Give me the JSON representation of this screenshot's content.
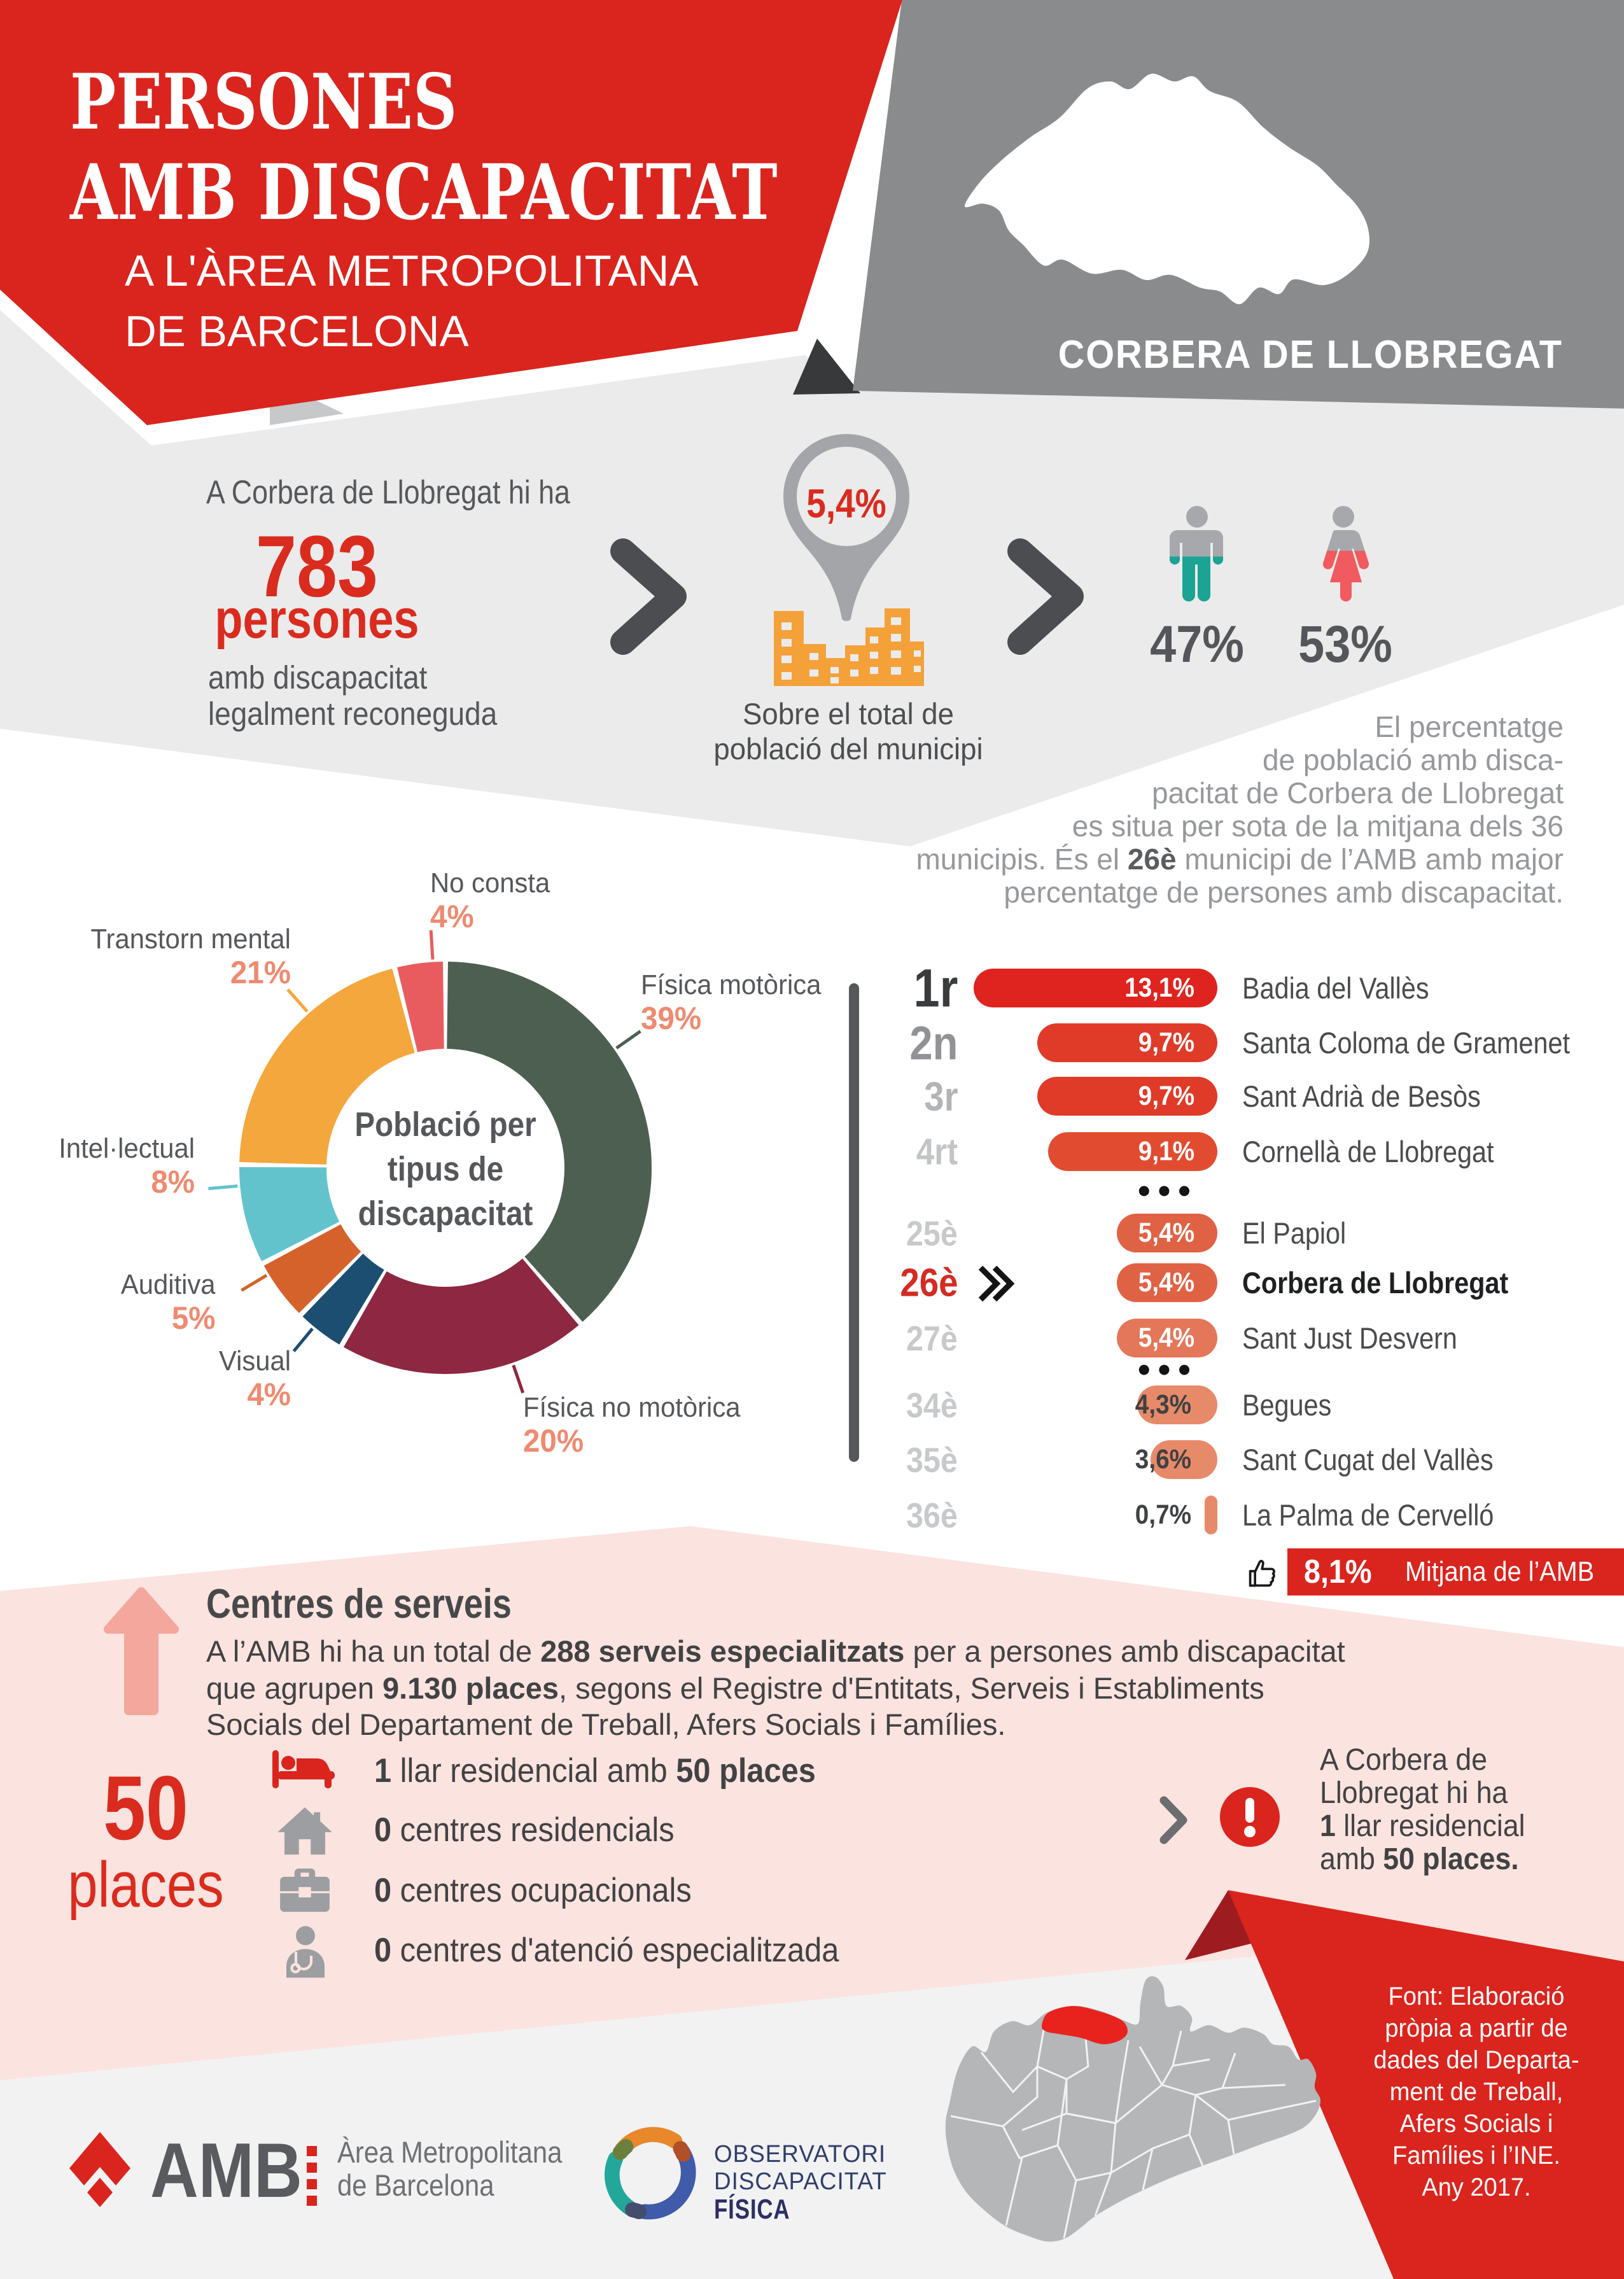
{
  "header": {
    "title_line1": "PERSONES",
    "title_line2": "AMB DISCAPACITAT",
    "subtitle_line1": "A L'ÀREA METROPOLITANA",
    "subtitle_line2": "DE BARCELONA",
    "municipality": "CORBERA DE LLOBREGAT"
  },
  "stats": {
    "intro": "A Corbera de Llobregat hi ha",
    "count": "783",
    "count_unit": "persones",
    "caption_line1": "amb discapacitat",
    "caption_line2": "legalment reconeguda",
    "pin_value": "5,4%",
    "pin_caption_line1": "Sobre el total de",
    "pin_caption_line2": "població del municipi",
    "male_pct": "47%",
    "female_pct": "53%",
    "note_line1": "El percentatge",
    "note_line2": "de població amb disca-",
    "note_line3": "pacitat de Corbera de Llobregat",
    "note_line4": "es situa per sota de la mitjana dels 36",
    "note_line5_pre": "municipis. És el ",
    "note_line5_bold": "26è",
    "note_line5_post": " municipi de l’AMB amb major",
    "note_line6": "percentatge de persones amb discapacitat."
  },
  "chart_data": [
    {
      "type": "pie",
      "donut": true,
      "title": "Població per tipus de discapacitat",
      "center_line1": "Població per",
      "center_line2": "tipus de",
      "center_line3": "discapacitat",
      "labels": [
        "Física motòrica",
        "Física no motòrica",
        "Visual",
        "Auditiva",
        "Intel·lectual",
        "Transtorn mental",
        "No consta"
      ],
      "values": [
        39,
        20,
        4,
        5,
        8,
        21,
        4
      ],
      "pct_labels": [
        "39%",
        "20%",
        "4%",
        "5%",
        "8%",
        "21%",
        "4%"
      ],
      "colors": [
        "#4d5f51",
        "#8e2741",
        "#1c4e71",
        "#d4622a",
        "#62c3cd",
        "#f4a73c",
        "#e85c5f"
      ],
      "start_angle_deg": 0,
      "clockwise": true,
      "legend_position": "around"
    },
    {
      "type": "bar",
      "orientation": "horizontal",
      "unit": "% de persones amb discapacitat",
      "rows": [
        {
          "rank": "1r",
          "value": 13.1,
          "pct": "13,1%",
          "name": "Badia del Vallès"
        },
        {
          "rank": "2n",
          "value": 9.7,
          "pct": "9,7%",
          "name": "Santa Coloma de Gramenet"
        },
        {
          "rank": "3r",
          "value": 9.7,
          "pct": "9,7%",
          "name": "Sant Adrià de Besòs"
        },
        {
          "rank": "4rt",
          "value": 9.1,
          "pct": "9,1%",
          "name": "Cornellà de Llobregat"
        },
        {
          "rank": "25è",
          "value": 5.4,
          "pct": "5,4%",
          "name": "El Papiol"
        },
        {
          "rank": "26è",
          "value": 5.4,
          "pct": "5,4%",
          "name": "Corbera de Llobregat",
          "highlight": true
        },
        {
          "rank": "27è",
          "value": 5.4,
          "pct": "5,4%",
          "name": "Sant Just Desvern"
        },
        {
          "rank": "34è",
          "value": 4.3,
          "pct": "4,3%",
          "name": "Begues"
        },
        {
          "rank": "35è",
          "value": 3.6,
          "pct": "3,6%",
          "name": "Sant Cugat del Vallès"
        },
        {
          "rank": "36è",
          "value": 0.7,
          "pct": "0,7%",
          "name": "La Palma de Cervelló"
        }
      ],
      "average_pct": "8,1%",
      "average_label": "Mitjana de l’AMB"
    }
  ],
  "services": {
    "heading": "Centres de serveis",
    "par_l1_pre": "A l’AMB hi ha un total de ",
    "par_l1_bold": "288 serveis especialitzats",
    "par_l1_post": " per a persones amb discapacitat",
    "par_l2_pre": "que agrupen ",
    "par_l2_bold": "9.130 places",
    "par_l2_post": ", segons el Registre d'Entitats, Serveis i Establiments",
    "par_l3": "Socials del Departament de Treball, Afers Socials i Famílies.",
    "places_num": "50",
    "places_word": "places",
    "item1_bold1": "1",
    "item1_mid": " llar residencial amb ",
    "item1_bold2": "50 places",
    "item2_bold": "0",
    "item2_text": " centres residencials",
    "item3_bold": "0",
    "item3_text": " centres ocupacionals",
    "item4_bold": "0",
    "item4_text": " centres d'atenció especialitzada",
    "alert_line1": "A Corbera de",
    "alert_line2": "Llobregat hi ha",
    "alert_line3_bold": "1",
    "alert_line3_post": " llar residencial",
    "alert_line4_pre": "amb ",
    "alert_line4_bold": "50 places."
  },
  "footer": {
    "amb_acronym": "AMB",
    "amb_name_line1": "Àrea Metropolitana",
    "amb_name_line2": "de Barcelona",
    "obs_line1": "OBSERVATORI",
    "obs_line2": "DISCAPACITAT",
    "obs_line3": "FÍSICA",
    "source_line1": "Font: Elaboració",
    "source_line2": "pròpia a partir de",
    "source_line3": "dades del Departa-",
    "source_line4": "ment de Treball,",
    "source_line5": "Afers Socials i",
    "source_line6": "Famílies i l’INE.",
    "source_line7": "Any 2017."
  },
  "colors": {
    "brand_red": "#da241e",
    "dark_header_gray": "#8a8b8d",
    "band_gray": "#ebebeb",
    "pink_bg": "#fbe3df",
    "footer_bg": "#f2f2f3",
    "salmon": "#ef8a70",
    "teal_male": "#1ba394",
    "coral_female": "#f15a5e",
    "orange_buildings": "#f4a13a",
    "bar_colors": [
      "#df2420",
      "#e03a28",
      "#e03a28",
      "#e14c31",
      "#e06245",
      "#e06245",
      "#e4775a",
      "#e78a69",
      "#e78a69",
      "#e78a69"
    ]
  }
}
